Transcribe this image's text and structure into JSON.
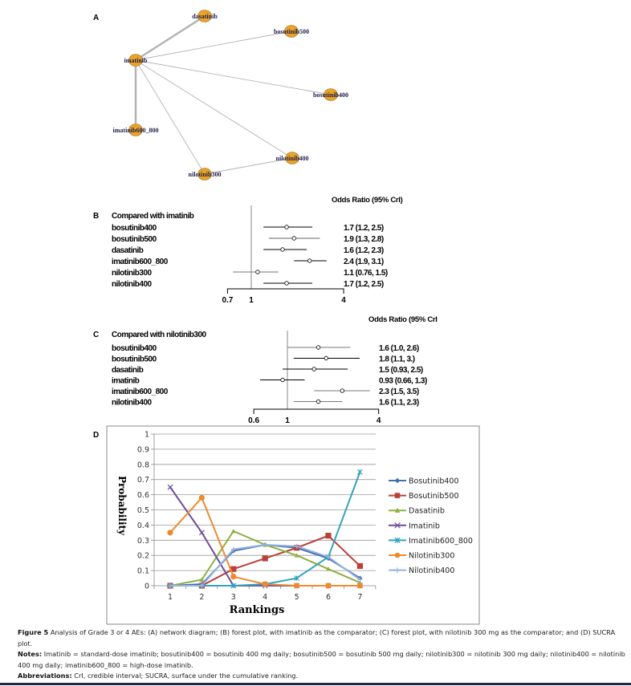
{
  "panel_a": {
    "letter": "A",
    "nodes": [
      {
        "id": "dasatinib",
        "label": "dasatinib"
      },
      {
        "id": "bosutinib500",
        "label": "bosutinib500"
      },
      {
        "id": "imatinib",
        "label": "imatinib"
      },
      {
        "id": "bosutinib400",
        "label": "bosutinib400"
      },
      {
        "id": "imatinib600_800",
        "label": "imatinib600_800"
      },
      {
        "id": "nilotinib400",
        "label": "nilotinib400"
      },
      {
        "id": "nilotinib300",
        "label": "nilotinib300"
      }
    ],
    "edges": [
      {
        "from": "imatinib",
        "to": "dasatinib",
        "weight": "thick"
      },
      {
        "from": "imatinib",
        "to": "imatinib600_800",
        "weight": "thick"
      },
      {
        "from": "imatinib",
        "to": "bosutinib500",
        "weight": "thin"
      },
      {
        "from": "imatinib",
        "to": "bosutinib400",
        "weight": "thin"
      },
      {
        "from": "imatinib",
        "to": "nilotinib400",
        "weight": "thin"
      },
      {
        "from": "imatinib",
        "to": "nilotinib300",
        "weight": "thin"
      },
      {
        "from": "nilotinib300",
        "to": "nilotinib400",
        "weight": "thin"
      }
    ],
    "node_color": "#E8A328"
  },
  "chart_data": [
    {
      "type": "forest",
      "letter": "B",
      "title": "Compared with imatinib",
      "header": "Odds Ratio (95% CrI)",
      "log_scale": true,
      "xticks": [
        "0.7",
        "1",
        "4"
      ],
      "xlim": [
        0.7,
        4
      ],
      "reference": 1,
      "rows": [
        {
          "label": "bosutinib400",
          "or": 1.7,
          "lo": 1.2,
          "hi": 2.5,
          "text": "1.7 (1.2, 2.5)",
          "color": "#000000"
        },
        {
          "label": "bosutinib500",
          "or": 1.9,
          "lo": 1.3,
          "hi": 2.8,
          "text": "1.9 (1.3, 2.8)",
          "color": "#666666"
        },
        {
          "label": "dasatinib",
          "or": 1.6,
          "lo": 1.2,
          "hi": 2.3,
          "text": "1.6 (1.2, 2.3)",
          "color": "#000000"
        },
        {
          "label": "imatinib600_800",
          "or": 2.4,
          "lo": 1.9,
          "hi": 3.1,
          "text": "2.4 (1.9, 3.1)",
          "color": "#000000"
        },
        {
          "label": "nilotinib300",
          "or": 1.1,
          "lo": 0.76,
          "hi": 1.5,
          "text": "1.1 (0.76, 1.5)",
          "color": "#777777"
        },
        {
          "label": "nilotinib400",
          "or": 1.7,
          "lo": 1.2,
          "hi": 2.5,
          "text": "1.7 (1.2, 2.5)",
          "color": "#000000"
        }
      ]
    },
    {
      "type": "forest",
      "letter": "C",
      "title": "Compared with nilotinib300",
      "header": "Odds Ratio (95% CrI",
      "log_scale": true,
      "xticks": [
        "0.6",
        "1",
        "4"
      ],
      "xlim": [
        0.6,
        4
      ],
      "reference": 1,
      "rows": [
        {
          "label": "bosutinib400",
          "or": 1.6,
          "lo": 1.0,
          "hi": 2.6,
          "text": "1.6 (1.0, 2.6)",
          "color": "#777777"
        },
        {
          "label": "bosutinib500",
          "or": 1.8,
          "lo": 1.1,
          "hi": 3.0,
          "text": "1.8 (1.1,  3.)",
          "color": "#000000"
        },
        {
          "label": "dasatinib",
          "or": 1.5,
          "lo": 0.93,
          "hi": 2.5,
          "text": "1.5 (0.93, 2.5)",
          "color": "#000000"
        },
        {
          "label": "imatinib",
          "or": 0.93,
          "lo": 0.66,
          "hi": 1.3,
          "text": "0.93 (0.66, 1.3)",
          "color": "#000000"
        },
        {
          "label": "imatinib600_800",
          "or": 2.3,
          "lo": 1.5,
          "hi": 3.5,
          "text": "2.3 (1.5, 3.5)",
          "color": "#777777"
        },
        {
          "label": "nilotinib400",
          "or": 1.6,
          "lo": 1.1,
          "hi": 2.3,
          "text": "1.6 (1.1, 2.3)",
          "color": "#777777"
        }
      ]
    },
    {
      "type": "line",
      "letter": "D",
      "xlabel": "Rankings",
      "ylabel": "Probability",
      "categories": [
        1,
        2,
        3,
        4,
        5,
        6,
        7
      ],
      "ylim": [
        0,
        1
      ],
      "yticks": [
        "0",
        "0.1",
        "0.2",
        "0.3",
        "0.4",
        "0.5",
        "0.6",
        "0.7",
        "0.8",
        "0.9",
        "1"
      ],
      "grid": true,
      "legend": "right",
      "series": [
        {
          "name": "Bosutinib400",
          "marker": "diamond",
          "color": "#3E6FB0",
          "values": [
            0,
            0.01,
            0.23,
            0.27,
            0.25,
            0.18,
            0.05
          ]
        },
        {
          "name": "Bosutinib500",
          "marker": "square",
          "color": "#B9403B",
          "values": [
            0,
            0,
            0.11,
            0.18,
            0.25,
            0.33,
            0.13
          ]
        },
        {
          "name": "Dasatinib",
          "marker": "triangle",
          "color": "#8DB040",
          "values": [
            0,
            0.04,
            0.36,
            0.27,
            0.2,
            0.11,
            0.02
          ]
        },
        {
          "name": "Imatinib",
          "marker": "x",
          "color": "#6E4B9A",
          "values": [
            0.65,
            0.35,
            0,
            0,
            0,
            0,
            0
          ]
        },
        {
          "name": "Imatinib600_800",
          "marker": "star",
          "color": "#34A2BE",
          "values": [
            0,
            0,
            0,
            0.01,
            0.05,
            0.19,
            0.75
          ]
        },
        {
          "name": "Nilotinib300",
          "marker": "circle",
          "color": "#EE8A2E",
          "values": [
            0.35,
            0.58,
            0.06,
            0.01,
            0,
            0,
            0
          ]
        },
        {
          "name": "Nilotinib400",
          "marker": "plus",
          "color": "#96B2DD",
          "values": [
            0,
            0,
            0.24,
            0.27,
            0.26,
            0.19,
            0.04
          ]
        }
      ]
    }
  ],
  "caption": {
    "figure_label": "Figure 5",
    "figure_text": " Analysis of Grade 3 or 4 AEs: (A) network diagram; (B) forest plot, with imatinib as the comparator; (C) forest plot, with nilotinib 300 mg as the comparator; and (D) SUCRA plot.",
    "notes_label": "Notes:",
    "notes_text": " Imatinib = standard-dose imatinib; bosutinib400 = bosutinib 400 mg daily; bosutinib500 = bosutinib 500 mg daily; nilotinib300 = nilotinib 300 mg daily; nilotinib400 = nilotinib 400 mg daily; imatinib600_800 = high-dose imatinib.",
    "abbrev_label": "Abbreviations:",
    "abbrev_text": " CrI, credible interval; SUCRA, surface under the cumulative ranking."
  }
}
